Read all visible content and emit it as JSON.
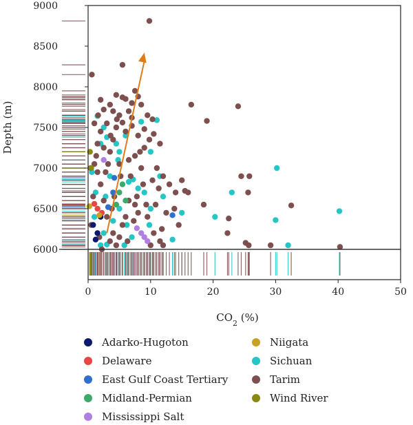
{
  "chart_data": {
    "type": "scatter",
    "xlabel": "CO2 (%)",
    "xlabel_main": "CO",
    "xlabel_sub": "2",
    "xlabel_suffix": " (%)",
    "ylabel": "Depth (m)",
    "xlim": [
      0,
      50
    ],
    "ylim": [
      6000,
      9000
    ],
    "xticks": [
      "0",
      "10",
      "20",
      "30",
      "40",
      "50"
    ],
    "yticks": [
      "6000",
      "6500",
      "7000",
      "7500",
      "8000",
      "8500",
      "9000"
    ],
    "trend_arrow": {
      "from": [
        3.0,
        6200
      ],
      "to": [
        9.0,
        8420
      ],
      "color": "#e07b1a"
    },
    "marginals": "rug strips of CO2 (bottom) and depth (left) per basin",
    "legend_position": "below",
    "series": [
      {
        "name": "Adarko-Hugoton",
        "color": "#0b1a6b",
        "points": [
          [
            0.8,
            6300
          ],
          [
            1.5,
            6200
          ],
          [
            1.2,
            6120
          ],
          [
            2.0,
            6400
          ]
        ]
      },
      {
        "name": "Delaware",
        "color": "#e84545",
        "points": [
          [
            1.5,
            6500
          ],
          [
            1.0,
            6560
          ],
          [
            2.2,
            6450
          ]
        ]
      },
      {
        "name": "East Gulf Coast Tertiary",
        "color": "#2f6fd0",
        "points": [
          [
            3.2,
            6520
          ],
          [
            4.0,
            6700
          ],
          [
            4.2,
            6880
          ],
          [
            13.5,
            6420
          ]
        ]
      },
      {
        "name": "Midland-Permian",
        "color": "#3fa86b",
        "points": [
          [
            5.0,
            6700
          ],
          [
            5.5,
            6800
          ],
          [
            6.0,
            6600
          ],
          [
            4.5,
            6550
          ]
        ]
      },
      {
        "name": "Mississippi Salt",
        "color": "#b07fe0",
        "points": [
          [
            2.5,
            7100
          ],
          [
            8.5,
            6200
          ],
          [
            9.0,
            6150
          ],
          [
            9.5,
            6100
          ],
          [
            7.8,
            6260
          ]
        ]
      },
      {
        "name": "Niigata",
        "color": "#c9a020",
        "points": [
          [
            0.2,
            6530
          ],
          [
            1.8,
            6420
          ]
        ]
      },
      {
        "name": "Sichuan",
        "color": "#26c6c6",
        "points": [
          [
            1.5,
            7640
          ],
          [
            2.0,
            7300
          ],
          [
            2.5,
            7500
          ],
          [
            3.0,
            7380
          ],
          [
            4.5,
            7300
          ],
          [
            5.0,
            7200
          ],
          [
            6.0,
            7400
          ],
          [
            8.5,
            7570
          ],
          [
            11.0,
            7590
          ],
          [
            10.0,
            7200
          ],
          [
            6.5,
            6830
          ],
          [
            7.2,
            6860
          ],
          [
            8.0,
            6750
          ],
          [
            9.0,
            6700
          ],
          [
            10.0,
            6500
          ],
          [
            11.5,
            6900
          ],
          [
            12.0,
            6650
          ],
          [
            15.0,
            6450
          ],
          [
            20.3,
            6400
          ],
          [
            23.0,
            6700
          ],
          [
            30.0,
            6360
          ],
          [
            30.2,
            7000
          ],
          [
            40.2,
            6470
          ],
          [
            32.0,
            6050
          ],
          [
            13.5,
            6120
          ],
          [
            3.0,
            6060
          ],
          [
            2.0,
            6050
          ],
          [
            2.5,
            6200
          ],
          [
            4.0,
            6350
          ],
          [
            5.0,
            6500
          ],
          [
            1.0,
            6400
          ],
          [
            7.0,
            6150
          ],
          [
            3.5,
            6900
          ],
          [
            4.8,
            7100
          ],
          [
            6.2,
            6300
          ],
          [
            1.2,
            6700
          ],
          [
            0.6,
            6950
          ],
          [
            2.8,
            6650
          ],
          [
            5.8,
            6050
          ],
          [
            9.8,
            6300
          ]
        ]
      },
      {
        "name": "Tarim",
        "color": "#7d4f4f",
        "points": [
          [
            9.8,
            8810
          ],
          [
            5.5,
            8270
          ],
          [
            0.6,
            8150
          ],
          [
            4.5,
            7900
          ],
          [
            5.5,
            7870
          ],
          [
            6.0,
            7850
          ],
          [
            7.0,
            7800
          ],
          [
            7.5,
            7950
          ],
          [
            8.0,
            7880
          ],
          [
            2.0,
            7840
          ],
          [
            2.5,
            7720
          ],
          [
            3.5,
            7780
          ],
          [
            4.0,
            7700
          ],
          [
            5.0,
            7650
          ],
          [
            6.5,
            7700
          ],
          [
            7.0,
            7620
          ],
          [
            8.5,
            7780
          ],
          [
            9.5,
            7650
          ],
          [
            3.0,
            7550
          ],
          [
            4.5,
            7500
          ],
          [
            5.5,
            7560
          ],
          [
            6.0,
            7450
          ],
          [
            7.0,
            7520
          ],
          [
            8.0,
            7400
          ],
          [
            9.0,
            7480
          ],
          [
            10.5,
            7420
          ],
          [
            11.5,
            7300
          ],
          [
            2.0,
            7450
          ],
          [
            1.0,
            7550
          ],
          [
            1.5,
            7300
          ],
          [
            2.5,
            7250
          ],
          [
            3.5,
            7200
          ],
          [
            4.0,
            7350
          ],
          [
            5.0,
            7050
          ],
          [
            6.5,
            7100
          ],
          [
            7.5,
            7150
          ],
          [
            8.5,
            7000
          ],
          [
            9.0,
            7250
          ],
          [
            11.0,
            7000
          ],
          [
            12.0,
            6900
          ],
          [
            13.0,
            6800
          ],
          [
            14.0,
            6700
          ],
          [
            15.0,
            6850
          ],
          [
            15.5,
            6720
          ],
          [
            16.0,
            6700
          ],
          [
            16.5,
            7780
          ],
          [
            19.0,
            7580
          ],
          [
            24.0,
            7760
          ],
          [
            24.5,
            6900
          ],
          [
            25.8,
            6900
          ],
          [
            25.6,
            6700
          ],
          [
            18.5,
            6550
          ],
          [
            22.5,
            6380
          ],
          [
            32.5,
            6540
          ],
          [
            22.3,
            6200
          ],
          [
            25.2,
            6080
          ],
          [
            25.7,
            6050
          ],
          [
            29.2,
            6050
          ],
          [
            40.3,
            6030
          ],
          [
            12.0,
            6050
          ],
          [
            11.5,
            6100
          ],
          [
            10.5,
            6200
          ],
          [
            10.0,
            6050
          ],
          [
            9.5,
            6400
          ],
          [
            8.0,
            6450
          ],
          [
            7.5,
            6550
          ],
          [
            6.5,
            6600
          ],
          [
            6.0,
            6400
          ],
          [
            5.5,
            6300
          ],
          [
            5.0,
            6150
          ],
          [
            4.5,
            6050
          ],
          [
            4.0,
            6200
          ],
          [
            3.5,
            6100
          ],
          [
            3.0,
            6400
          ],
          [
            2.5,
            6600
          ],
          [
            2.0,
            6800
          ],
          [
            1.5,
            6950
          ],
          [
            1.0,
            7050
          ],
          [
            0.5,
            6300
          ],
          [
            0.8,
            6650
          ],
          [
            1.8,
            6150
          ],
          [
            2.8,
            6950
          ],
          [
            3.8,
            6500
          ],
          [
            6.8,
            6900
          ],
          [
            7.8,
            6650
          ],
          [
            8.8,
            6800
          ],
          [
            10.8,
            6550
          ],
          [
            11.8,
            6250
          ],
          [
            12.5,
            6450
          ],
          [
            13.8,
            6500
          ],
          [
            14.5,
            6300
          ],
          [
            1.3,
            7150
          ],
          [
            3.2,
            7050
          ],
          [
            4.2,
            6650
          ],
          [
            5.2,
            6900
          ],
          [
            0.4,
            7000
          ],
          [
            2.2,
            6000
          ],
          [
            6.3,
            6100
          ],
          [
            7.3,
            6350
          ],
          [
            9.3,
            6550
          ],
          [
            10.3,
            6850
          ],
          [
            11.3,
            6750
          ],
          [
            3.6,
            7400
          ],
          [
            4.6,
            7600
          ],
          [
            1.6,
            7650
          ],
          [
            8.3,
            7200
          ],
          [
            9.8,
            7350
          ],
          [
            10.3,
            7600
          ]
        ]
      },
      {
        "name": "Wind River",
        "color": "#8a8a12",
        "points": [
          [
            0.3,
            7200
          ],
          [
            0.5,
            7000
          ]
        ]
      }
    ]
  },
  "legend": {
    "left": [
      "Adarko-Hugoton",
      "Delaware",
      "East Gulf Coast Tertiary",
      "Midland-Permian",
      "Mississippi Salt"
    ],
    "right": [
      "Niigata",
      "Sichuan",
      "Tarim",
      "Wind River"
    ]
  }
}
